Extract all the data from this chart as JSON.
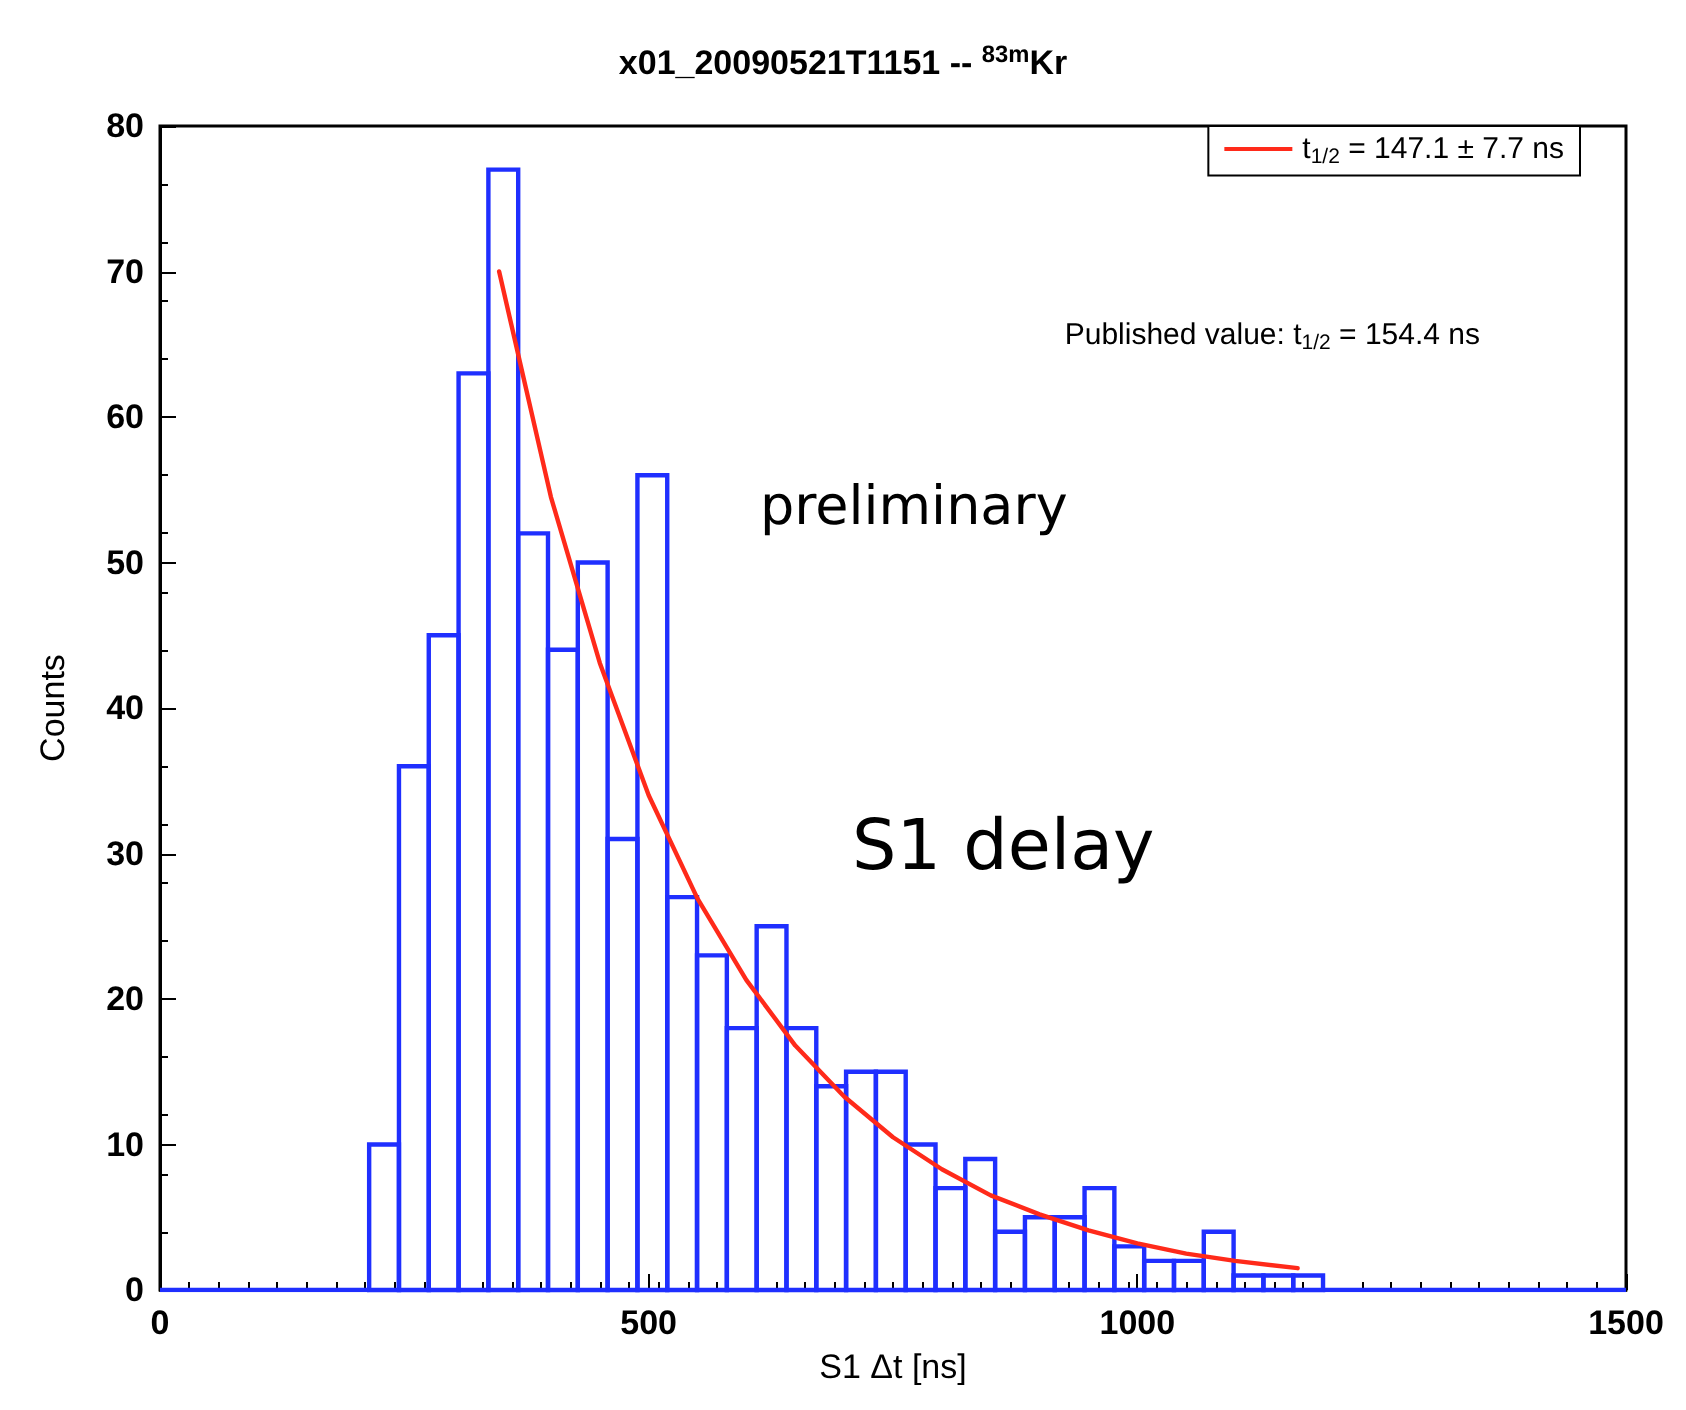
{
  "chart_data": {
    "type": "histogram",
    "title": "x01_20090521T1151 -- $^{83m}$Kr",
    "xlabel": "S1 Δt [ns]",
    "ylabel": "Counts",
    "bins": [
      214,
      244.5,
      275,
      305.5,
      336,
      366.5,
      397,
      427.5,
      458,
      488.5,
      519,
      549.5,
      580,
      610.5,
      641,
      671.5,
      702,
      732.5,
      763,
      793.5,
      824,
      854.5,
      885,
      915.5,
      946,
      976.5,
      1007,
      1037.5,
      1068,
      1098.5,
      1129,
      1159.5,
      1190
    ],
    "values": [
      10,
      36,
      45,
      63,
      77,
      52,
      44,
      50,
      31,
      56,
      27,
      23,
      18,
      25,
      18,
      14,
      15,
      15,
      10,
      7,
      9,
      4,
      5,
      5,
      7,
      3,
      2,
      2,
      4,
      1,
      1,
      1
    ],
    "color": "#1f2fff",
    "series": [
      {
        "name": "t$_{1/2}$ = 147.1 ± 7.7 ns",
        "type": "line",
        "color": "#ff2a1a",
        "x": [
          347,
          400,
          450,
          500,
          550,
          600,
          650,
          700,
          750,
          800,
          850,
          900,
          950,
          1000,
          1050,
          1100,
          1164
        ],
        "values": [
          70,
          54.5,
          43.1,
          34,
          26.9,
          21.3,
          16.8,
          13.3,
          10.5,
          8.3,
          6.5,
          5.2,
          4.1,
          3.2,
          2.5,
          2,
          1.5
        ]
      }
    ],
    "xlim": [
      0,
      1500
    ],
    "xticks": [
      0,
      500,
      1000,
      1500
    ],
    "ylim": [
      0,
      80
    ],
    "yticks": [
      0,
      10,
      20,
      30,
      40,
      50,
      60,
      70,
      80
    ],
    "legend": "top right",
    "marker": "none",
    "line_style": "solid",
    "annotations": [
      "Published value: t$_{1/2}$ = 154.4 ns",
      "preliminary",
      "S1 delay"
    ]
  }
}
